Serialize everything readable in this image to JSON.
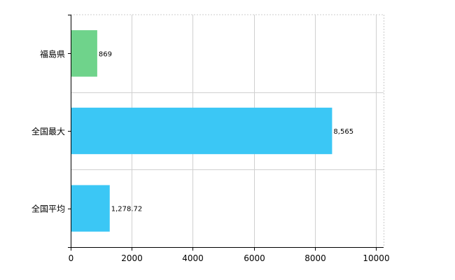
{
  "chart_data": {
    "type": "bar",
    "orientation": "horizontal",
    "categories": [
      "福島県",
      "全国最大",
      "全国平均"
    ],
    "values": [
      869,
      8565,
      1278.72
    ],
    "value_labels": [
      "869",
      "8,565",
      "1,278.72"
    ],
    "colors": [
      "#6fd38b",
      "#3bc7f5",
      "#3bc7f5"
    ],
    "xlim": [
      0,
      10000
    ],
    "xticks": [
      0,
      2000,
      4000,
      6000,
      8000,
      10000
    ],
    "xtick_labels": [
      "0",
      "2000",
      "4000",
      "6000",
      "8000",
      "10000"
    ],
    "grid": true
  }
}
